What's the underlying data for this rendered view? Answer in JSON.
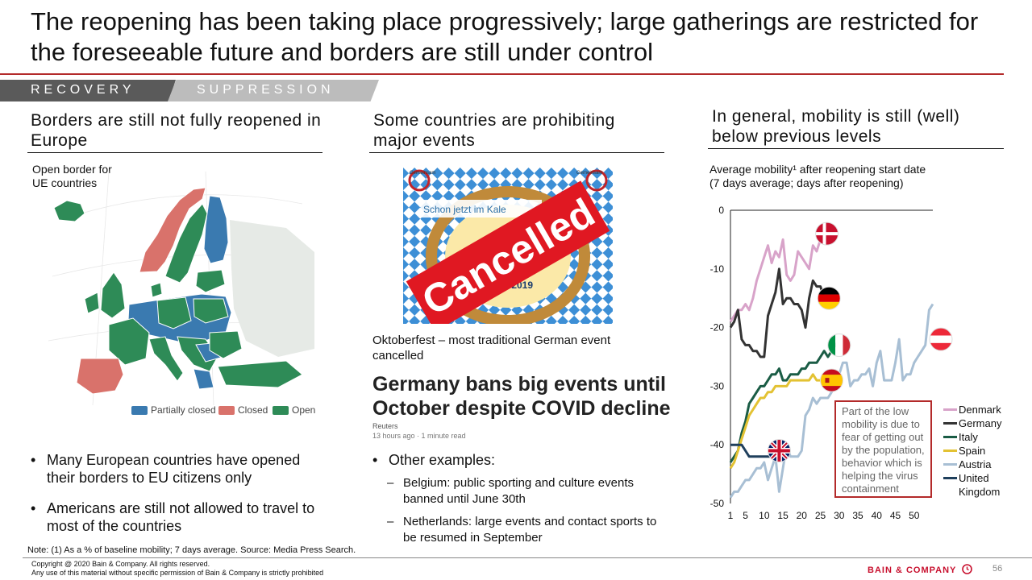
{
  "title": "The reopening has been taking place progressively; large gatherings are restricted for the foreseeable future and borders are still under control",
  "tabs": {
    "recovery": "RECOVERY",
    "suppression": "SUPPRESSION"
  },
  "colors": {
    "accent": "#b32a2a",
    "open": "#2e8b57",
    "closed": "#d9726b",
    "partial": "#3a7ab0",
    "brand": "#c8102e"
  },
  "left": {
    "heading": "Borders are still not fully reopened in Europe",
    "map_caption_1": "Open border for",
    "map_caption_2": "UE countries",
    "legend": [
      "Partially closed",
      "Closed",
      "Open"
    ],
    "bullets": [
      "Many European countries have opened their borders to EU citizens only",
      "Americans are still not allowed to travel to most of the countries"
    ]
  },
  "middle": {
    "heading": "Some countries are prohibiting major events",
    "image_texts": {
      "stamp": "Cancelled",
      "banner": "Schon jetzt im Kale",
      "date": "ober 2019",
      "logo_text": "Gemeinsam"
    },
    "caption": "Oktoberfest – most traditional German event cancelled",
    "headline": "Germany bans big events until October despite COVID decline",
    "source": "Reuters",
    "meta": "13 hours ago · 1 minute read",
    "bullet": "Other examples:",
    "sub_bullets": [
      "Belgium: public sporting and culture events banned until June 30th",
      "Netherlands: large events and contact sports to be resumed in September"
    ]
  },
  "right": {
    "heading": "In general, mobility is still (well) below previous levels",
    "chart_title_1": "Average mobility¹ after reopening start date",
    "chart_title_2": "(7 days average; days after reopening)",
    "annotation": "Part of the low mobility is due to fear of getting out by the population, behavior which is helping the virus containment"
  },
  "chart_data": {
    "type": "line",
    "title": "Average mobility¹ after reopening start date",
    "subtitle": "(7 days average; days after reopening)",
    "xlabel": "",
    "ylabel": "",
    "xlim": [
      1,
      55
    ],
    "ylim": [
      -50,
      0
    ],
    "x_ticks": [
      1,
      5,
      10,
      15,
      20,
      25,
      30,
      35,
      40,
      45,
      50
    ],
    "y_ticks": [
      0,
      -10,
      -20,
      -30,
      -40,
      -50
    ],
    "legend_position": "bottom-right",
    "grid": false,
    "series": [
      {
        "name": "Denmark",
        "color": "#d8a3c9",
        "flag": "denmark-flag",
        "x": [
          1,
          2,
          3,
          4,
          5,
          6,
          7,
          8,
          9,
          10,
          11,
          12,
          13,
          14,
          15,
          16,
          17,
          18,
          19,
          20,
          21,
          22,
          23,
          24,
          25
        ],
        "y": [
          -19,
          -18,
          -17,
          -17,
          -16,
          -17,
          -15,
          -12,
          -10,
          -8,
          -6,
          -9,
          -7,
          -8,
          -5,
          -11,
          -12,
          -11,
          -7,
          -8,
          -9,
          -10,
          -6,
          -7,
          -5
        ]
      },
      {
        "name": "Germany",
        "color": "#333333",
        "flag": "germany-flag",
        "x": [
          1,
          2,
          3,
          4,
          5,
          6,
          7,
          8,
          9,
          10,
          11,
          12,
          13,
          14,
          15,
          16,
          17,
          18,
          19,
          20,
          21,
          22,
          23,
          24,
          25,
          26
        ],
        "y": [
          -20,
          -19,
          -17,
          -22,
          -23,
          -23,
          -24,
          -24,
          -25,
          -25,
          -18,
          -16,
          -14,
          -10,
          -16,
          -15,
          -15,
          -16,
          -16,
          -17,
          -20,
          -15,
          -12,
          -13,
          -13,
          -15
        ]
      },
      {
        "name": "Italy",
        "color": "#1a5c45",
        "flag": "italy-flag",
        "x": [
          1,
          2,
          3,
          4,
          5,
          6,
          7,
          8,
          9,
          10,
          11,
          12,
          13,
          14,
          15,
          16,
          17,
          18,
          19,
          20,
          21,
          22,
          23,
          24,
          25,
          26,
          27,
          28,
          29,
          30
        ],
        "y": [
          -43,
          -42,
          -41,
          -38,
          -36,
          -33,
          -32,
          -31,
          -30,
          -30,
          -29,
          -28,
          -28,
          -27,
          -29,
          -29,
          -28,
          -28,
          -28,
          -27,
          -27,
          -26,
          -26,
          -26,
          -25,
          -24,
          -25,
          -24,
          -23,
          -22
        ]
      },
      {
        "name": "Spain",
        "color": "#e3c233",
        "flag": "spain-flag",
        "x": [
          1,
          2,
          3,
          4,
          5,
          6,
          7,
          8,
          9,
          10,
          11,
          12,
          13,
          14,
          15,
          16,
          17,
          18,
          19,
          20,
          21,
          22,
          23,
          24,
          25,
          26,
          27,
          28,
          29,
          30
        ],
        "y": [
          -44,
          -43,
          -41,
          -39,
          -37,
          -35,
          -34,
          -33,
          -32,
          -32,
          -31,
          -31,
          -30,
          -30,
          -30,
          -30,
          -29,
          -29,
          -29,
          -29,
          -29,
          -29,
          -28,
          -29,
          -29,
          -29,
          -29,
          -29,
          -29,
          -29
        ]
      },
      {
        "name": "Austria",
        "color": "#a8bfd4",
        "flag": "austria-flag",
        "x": [
          1,
          2,
          3,
          4,
          5,
          6,
          7,
          8,
          9,
          10,
          11,
          12,
          13,
          14,
          15,
          16,
          17,
          18,
          19,
          20,
          21,
          22,
          23,
          24,
          25,
          26,
          27,
          28,
          29,
          30,
          31,
          32,
          33,
          34,
          35,
          36,
          37,
          38,
          39,
          40,
          41,
          42,
          43,
          44,
          45,
          46,
          47,
          48,
          49,
          50,
          51,
          52,
          53,
          54,
          55
        ],
        "y": [
          -49,
          -48,
          -48,
          -47,
          -46,
          -46,
          -45,
          -44,
          -44,
          -43,
          -46,
          -44,
          -42,
          -48,
          -44,
          -40,
          -42,
          -42,
          -42,
          -41,
          -35,
          -34,
          -32,
          -33,
          -32,
          -32,
          -32,
          -31,
          -29,
          -28,
          -26,
          -26,
          -30,
          -29,
          -29,
          -28,
          -28,
          -27,
          -30,
          -26,
          -24,
          -29,
          -29,
          -29,
          -26,
          -22,
          -29,
          -28,
          -28,
          -26,
          -25,
          -24,
          -23,
          -17,
          -16
        ]
      },
      {
        "name": "United Kingdom",
        "color": "#1f3f5c",
        "flag": "uk-flag",
        "x": [
          1,
          2,
          3,
          4,
          5,
          6,
          7,
          8,
          9,
          10,
          11,
          12,
          13,
          14,
          15
        ],
        "y": [
          -40,
          -40,
          -40,
          -40,
          -41,
          -42,
          -42,
          -42,
          -42,
          -42,
          -42,
          -42,
          -42,
          -42,
          -42
        ]
      }
    ]
  },
  "footer": {
    "note": "Note: (1) As a % of baseline mobility; 7 days average. Source: Media Press Search.",
    "copyright": "Copyright @ 2020 Bain & Company. All rights reserved.",
    "disclaimer": "Any use of this material without specific permission of Bain & Company is strictly prohibited",
    "brand": "BAIN & COMPANY",
    "page": "56"
  }
}
